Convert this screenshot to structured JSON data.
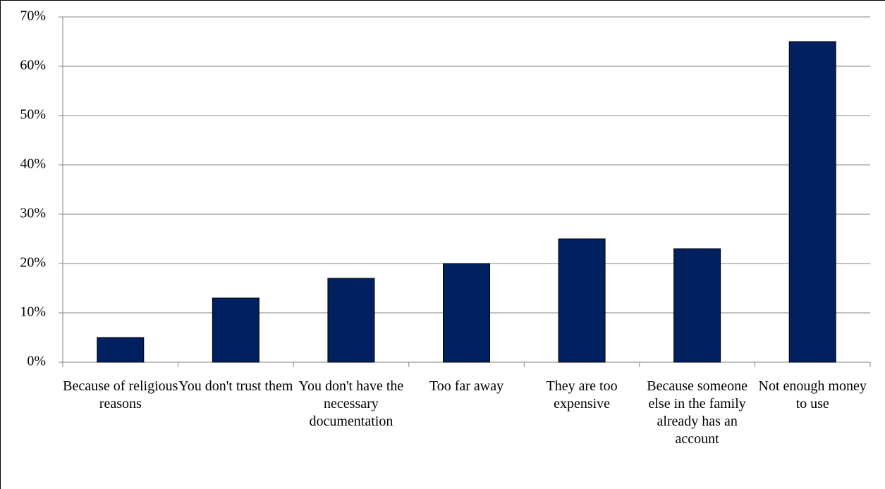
{
  "chart_data": {
    "type": "bar",
    "categories": [
      "Because of religious reasons",
      "You don't trust them",
      "You don't have the necessary documentation",
      "Too far away",
      "They are too expensive",
      "Because someone else in the family already has an account",
      "Not enough money to use"
    ],
    "values": [
      5,
      13,
      17,
      20,
      25,
      23,
      65
    ],
    "color": "#002060",
    "ylim": [
      0,
      70
    ],
    "yticks": [
      {
        "value": 0,
        "label": "0%"
      },
      {
        "value": 10,
        "label": "10%"
      },
      {
        "value": 20,
        "label": "20%"
      },
      {
        "value": 30,
        "label": "30%"
      },
      {
        "value": 40,
        "label": "40%"
      },
      {
        "value": 50,
        "label": "50%"
      },
      {
        "value": 60,
        "label": "60%"
      },
      {
        "value": 70,
        "label": "70%"
      }
    ],
    "grid": true
  }
}
